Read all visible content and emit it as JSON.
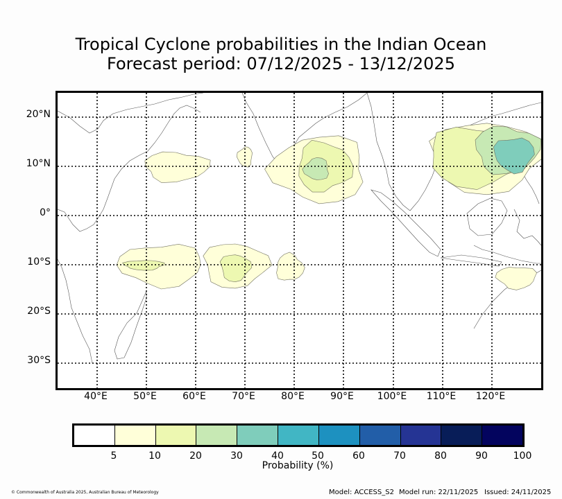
{
  "title": {
    "line1": "Tropical Cyclone probabilities in the Indian Ocean",
    "line2": "Forecast period: 07/12/2025 - 13/12/2025"
  },
  "map": {
    "lon_range": [
      32,
      130
    ],
    "lat_range": [
      -35,
      25
    ],
    "lat_labels": [
      "20°N",
      "10°N",
      "0°",
      "10°S",
      "20°S",
      "30°S"
    ],
    "lat_values": [
      20,
      10,
      0,
      -10,
      -20,
      -30
    ],
    "lon_labels": [
      "40°E",
      "50°E",
      "60°E",
      "70°E",
      "80°E",
      "90°E",
      "100°E",
      "110°E",
      "120°E"
    ],
    "lon_values": [
      40,
      50,
      60,
      70,
      80,
      90,
      100,
      110,
      120
    ],
    "probability_areas": [
      {
        "name": "arabian-sea",
        "level": "5-10",
        "center": [
          56,
          10
        ],
        "extent": [
          49,
          62,
          7.5,
          13.5
        ]
      },
      {
        "name": "lakshadweep",
        "level": "5-10",
        "center": [
          70,
          12
        ],
        "extent": [
          68.5,
          71.5,
          10,
          14
        ]
      },
      {
        "name": "bay-of-bengal-outer",
        "level": "5-10",
        "center": [
          85,
          9.5
        ],
        "extent": [
          76,
          95,
          3.5,
          17
        ]
      },
      {
        "name": "bay-of-bengal-mid",
        "level": "10-20",
        "center": [
          86,
          10
        ],
        "extent": [
          80,
          91,
          5,
          15
        ]
      },
      {
        "name": "bay-of-bengal-core",
        "level": "20-30",
        "center": [
          84.5,
          9.5
        ],
        "extent": [
          82,
          87,
          7.5,
          12
        ]
      },
      {
        "name": "south-china-sea-outer",
        "level": "5-10",
        "center": [
          119,
          12
        ],
        "extent": [
          108,
          130,
          5.5,
          20
        ]
      },
      {
        "name": "south-china-sea-mid",
        "level": "10-20",
        "center": [
          117,
          12
        ],
        "extent": [
          109,
          129,
          7,
          19
        ]
      },
      {
        "name": "philippines-20",
        "level": "20-30",
        "center": [
          123,
          13.5
        ],
        "extent": [
          117,
          130,
          9,
          18.5
        ]
      },
      {
        "name": "philippines-30",
        "level": "30-40",
        "center": [
          124.5,
          12.5
        ],
        "extent": [
          121,
          129,
          10,
          17
        ]
      },
      {
        "name": "sw-indian-west",
        "level": "5-10",
        "center": [
          53,
          -10
        ],
        "extent": [
          45,
          62,
          -14.5,
          -6
        ]
      },
      {
        "name": "sw-indian-west-core",
        "level": "10-20",
        "center": [
          49.5,
          -10
        ],
        "extent": [
          46,
          54,
          -11,
          -9
        ]
      },
      {
        "name": "sw-indian-central",
        "level": "5-10",
        "center": [
          68,
          -10
        ],
        "extent": [
          61,
          74,
          -15.5,
          -6.5
        ]
      },
      {
        "name": "sw-indian-central-core",
        "level": "10-20",
        "center": [
          68,
          -10.5
        ],
        "extent": [
          65,
          71,
          -13.5,
          -8
        ]
      },
      {
        "name": "se-indian",
        "level": "5-10",
        "center": [
          79,
          -10.5
        ],
        "extent": [
          76.5,
          82,
          -13.5,
          -8
        ]
      },
      {
        "name": "nw-australia",
        "level": "5-10",
        "center": [
          125,
          -12.5
        ],
        "extent": [
          122,
          130,
          -15,
          -10.5
        ]
      }
    ]
  },
  "colorbar": {
    "colors": [
      "#ffffff",
      "#ffffd9",
      "#edf8b1",
      "#c7e9b4",
      "#7fcdbb",
      "#41b6c4",
      "#1d91c0",
      "#225ea8",
      "#253494",
      "#081d58",
      "#03045e"
    ],
    "ticks": [
      "5",
      "10",
      "20",
      "30",
      "40",
      "50",
      "60",
      "70",
      "80",
      "90",
      "100"
    ],
    "label": "Probability (%)"
  },
  "footer": {
    "copyright": "© Commonwealth of Australia 2025, Australian Bureau of Meteorology",
    "model": "Model: ACCESS_S2",
    "model_run": "Model run: 22/11/2025",
    "issued": "Issued: 24/11/2025"
  }
}
